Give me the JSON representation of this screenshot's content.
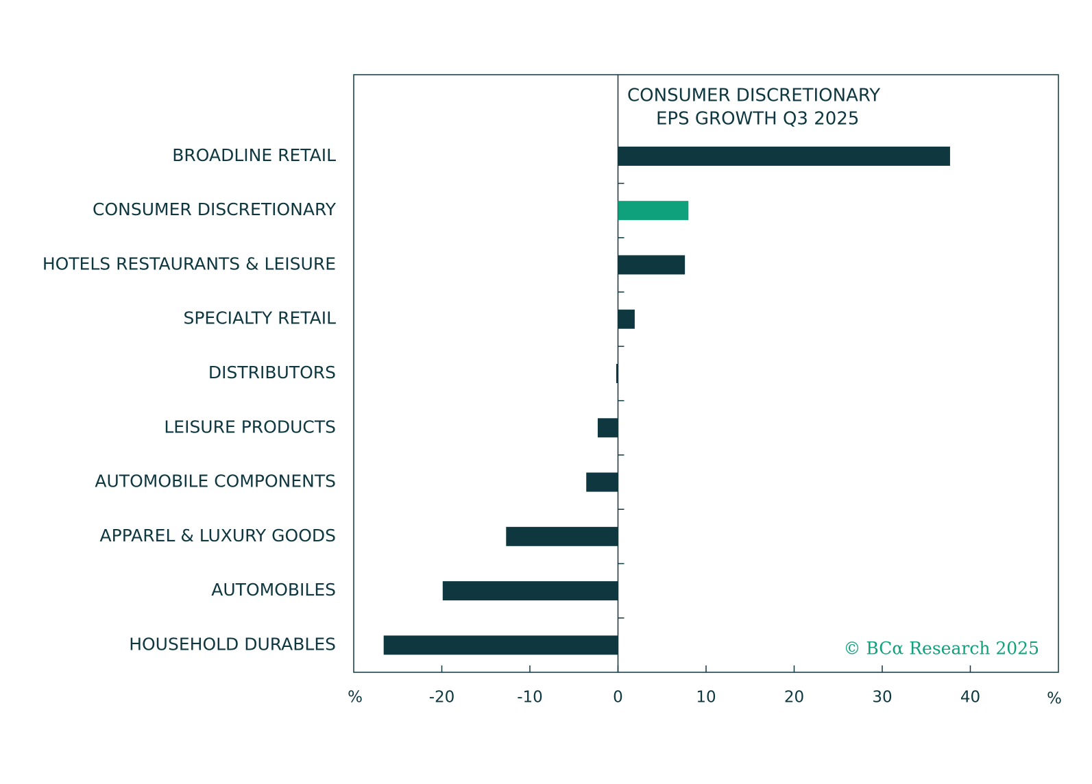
{
  "chart_data": {
    "type": "hbar",
    "title": [
      "CONSUMER DISCRETIONARY",
      "EPS  GROWTH Q3 2025"
    ],
    "categories": [
      "BROADLINE RETAIL",
      "CONSUMER DISCRETIONARY",
      "HOTELS RESTAURANTS & LEISURE",
      "SPECIALTY RETAIL",
      "DISTRIBUTORS",
      "LEISURE PRODUCTS",
      "AUTOMOBILE COMPONENTS",
      "APPAREL & LUXURY GOODS",
      "AUTOMOBILES",
      "HOUSEHOLD DURABLES"
    ],
    "values": [
      37.7,
      8.0,
      7.6,
      1.9,
      -0.2,
      -2.3,
      -3.6,
      -12.7,
      -19.9,
      -26.6
    ],
    "colors": [
      "#0e3740",
      "#0fa07c",
      "#0e3740",
      "#0e3740",
      "#0e3740",
      "#0e3740",
      "#0e3740",
      "#0e3740",
      "#0e3740",
      "#0e3740"
    ],
    "xlim": [
      -30,
      50
    ],
    "xticks": [
      -20,
      -10,
      0,
      10,
      20,
      30,
      40
    ],
    "x_unit_left": "%",
    "x_unit_right": "%",
    "source": "© BCα Research 2025"
  }
}
